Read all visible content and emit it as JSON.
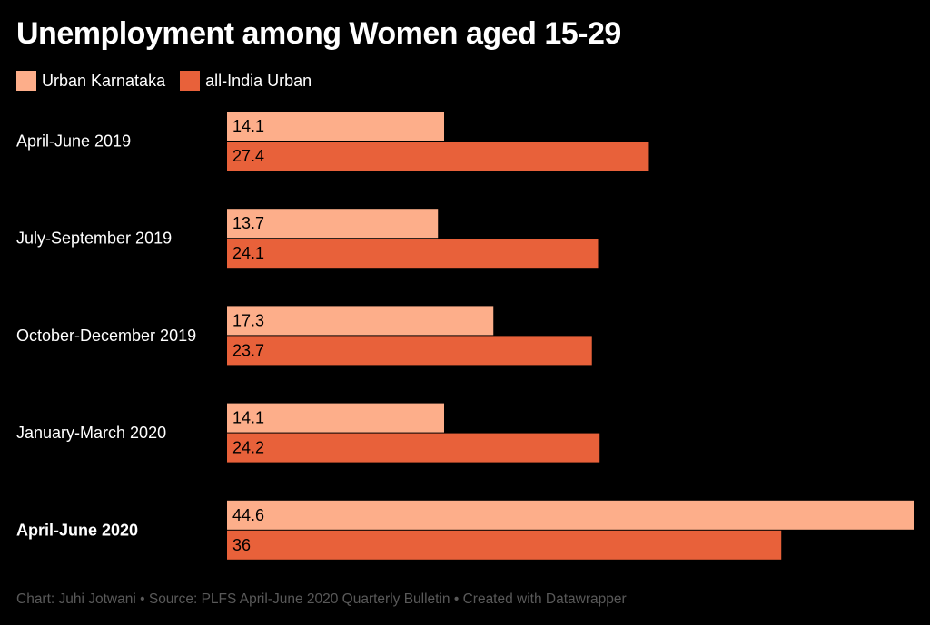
{
  "title": "Unemployment among Women aged 15-29",
  "footer": "Chart: Juhi Jotwani • Source: PLFS April-June 2020 Quarterly Bulletin • Created with Datawrapper",
  "colors": {
    "background": "#000000",
    "series_1": "#fdae8a",
    "series_2": "#e8613a",
    "footer_text": "#595959"
  },
  "chart_data": {
    "type": "bar",
    "orientation": "horizontal",
    "categories": [
      "April-June 2019",
      "July-September 2019",
      "October-December 2019",
      "January-March 2020",
      "April-June 2020"
    ],
    "highlighted_category": "April-June 2020",
    "series": [
      {
        "name": "Urban Karnataka",
        "values": [
          14.1,
          13.7,
          17.3,
          14.1,
          44.6
        ]
      },
      {
        "name": "all-India Urban",
        "values": [
          27.4,
          24.1,
          23.7,
          24.2,
          36
        ]
      }
    ],
    "value_labels": [
      [
        "14.1",
        "13.7",
        "17.3",
        "14.1",
        "44.6"
      ],
      [
        "27.4",
        "24.1",
        "23.7",
        "24.2",
        "36"
      ]
    ],
    "xlim": [
      0,
      44.6
    ],
    "grid": false,
    "legend": "top-left"
  }
}
